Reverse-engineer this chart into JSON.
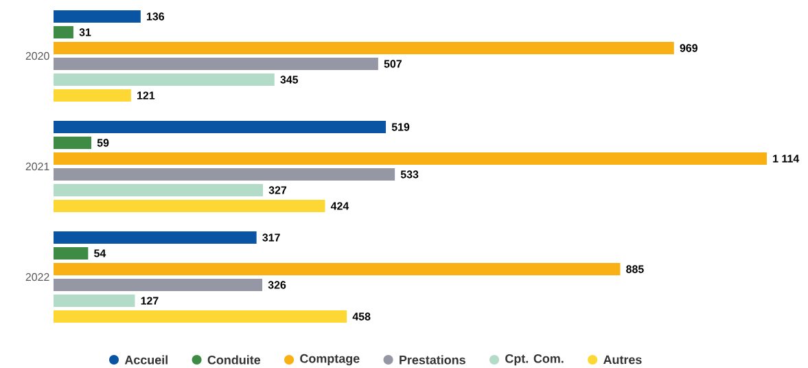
{
  "chart_data": {
    "type": "bar",
    "orientation": "horizontal",
    "categories": [
      "2020",
      "2021",
      "2022"
    ],
    "legend": "bottom",
    "series": [
      {
        "name": "Accueil",
        "color": "#0a55a3",
        "values": [
          136,
          519,
          317
        ],
        "value_labels": [
          "136",
          "519",
          "317"
        ]
      },
      {
        "name": "Conduite",
        "color": "#3d8b45",
        "values": [
          31,
          59,
          54
        ],
        "value_labels": [
          "31",
          "59",
          "54"
        ]
      },
      {
        "name": "Comptage",
        "color": "#f8b014",
        "values": [
          969,
          1114,
          885
        ],
        "value_labels": [
          "969",
          "1 114",
          "885"
        ]
      },
      {
        "name": "Prestations",
        "color": "#9597a4",
        "values": [
          507,
          533,
          326
        ],
        "value_labels": [
          "507",
          "533",
          "326"
        ]
      },
      {
        "name": "Cpt. Com.",
        "color": "#b2dbc8",
        "values": [
          345,
          327,
          127
        ],
        "value_labels": [
          "345",
          "327",
          "127"
        ]
      },
      {
        "name": "Autres",
        "color": "#fdd835",
        "values": [
          121,
          424,
          458
        ],
        "value_labels": [
          "121",
          "424",
          "458"
        ]
      }
    ]
  }
}
